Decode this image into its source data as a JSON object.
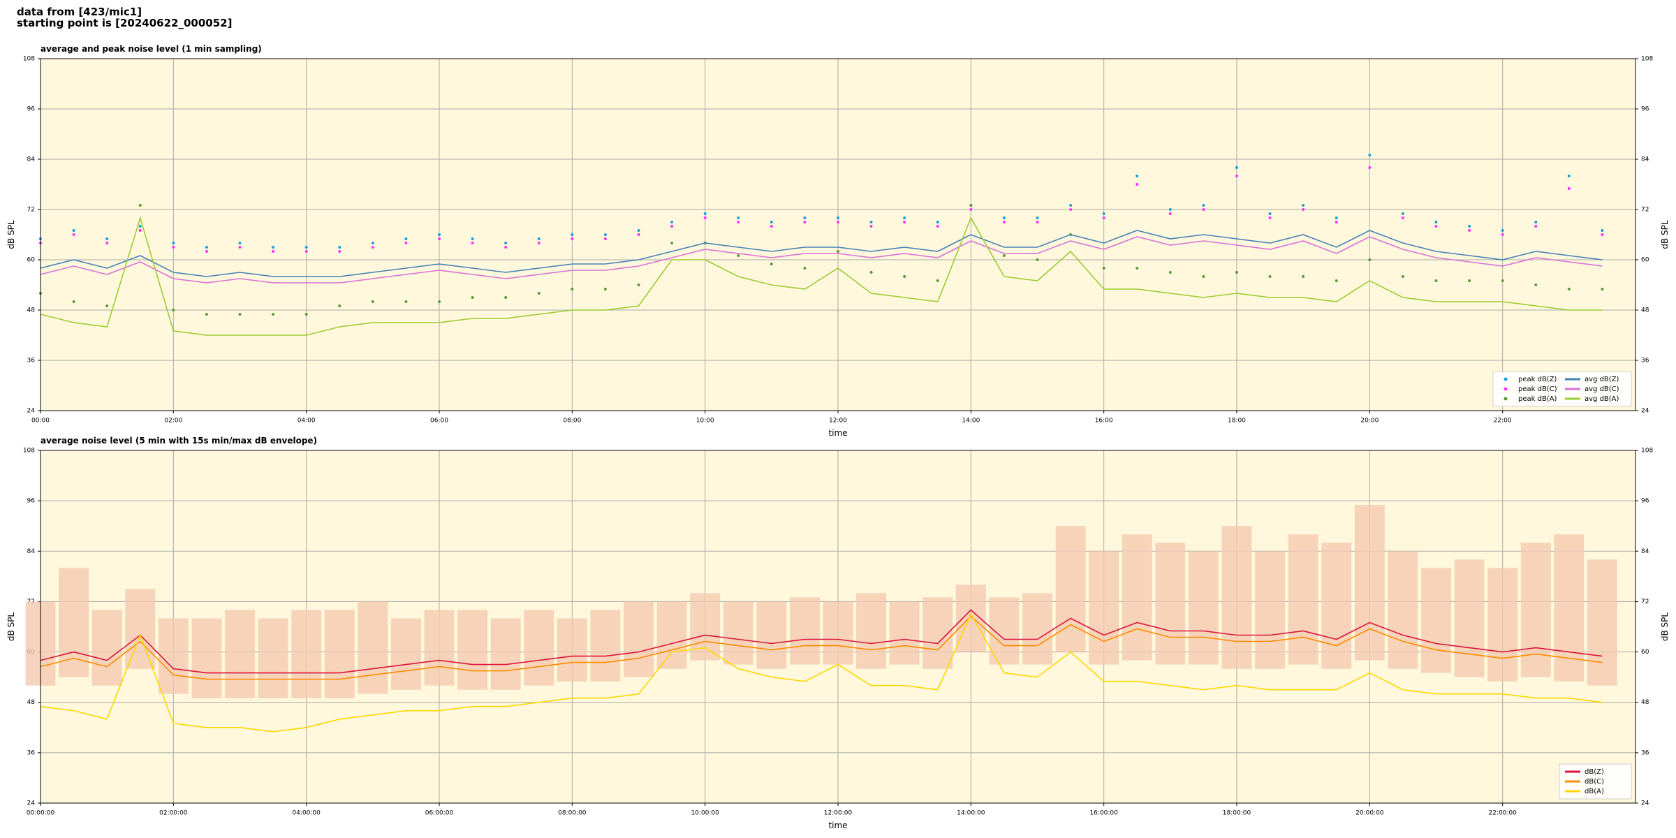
{
  "header": {
    "lines": [
      "data from [423/mic1]",
      "starting point is [20240622_000052]"
    ]
  },
  "chart_data": [
    {
      "type": "line",
      "title": "average and peak noise level (1 min sampling)",
      "xlabel": "time",
      "ylabel": "dB SPL",
      "background": "#fff8dc",
      "grid": true,
      "legend": "lower right",
      "xlim": [
        0,
        24
      ],
      "ylim": [
        24,
        108
      ],
      "yticks": [
        24,
        36,
        48,
        60,
        72,
        84,
        96,
        108
      ],
      "xticks": [
        {
          "value": 0,
          "label": "00:00"
        },
        {
          "value": 2,
          "label": "02:00"
        },
        {
          "value": 4,
          "label": "04:00"
        },
        {
          "value": 6,
          "label": "06:00"
        },
        {
          "value": 8,
          "label": "08:00"
        },
        {
          "value": 10,
          "label": "10:00"
        },
        {
          "value": 12,
          "label": "12:00"
        },
        {
          "value": 14,
          "label": "14:00"
        },
        {
          "value": 16,
          "label": "16:00"
        },
        {
          "value": 18,
          "label": "18:00"
        },
        {
          "value": 20,
          "label": "20:00"
        },
        {
          "value": 22,
          "label": "22:00"
        }
      ],
      "x": [
        0,
        0.5,
        1,
        1.5,
        2,
        2.5,
        3,
        3.5,
        4,
        4.5,
        5,
        5.5,
        6,
        6.5,
        7,
        7.5,
        8,
        8.5,
        9,
        9.5,
        10,
        10.5,
        11,
        11.5,
        12,
        12.5,
        13,
        13.5,
        14,
        14.5,
        15,
        15.5,
        16,
        16.5,
        17,
        17.5,
        18,
        18.5,
        19,
        19.5,
        20,
        20.5,
        21,
        21.5,
        22,
        22.5,
        23,
        23.5
      ],
      "series": [
        {
          "name": "peak dB(Z)",
          "mode": "markers",
          "color": "#1f9fd8",
          "values": [
            65,
            67,
            65,
            68,
            64,
            63,
            64,
            63,
            63,
            63,
            64,
            65,
            66,
            65,
            64,
            65,
            66,
            66,
            67,
            69,
            71,
            70,
            69,
            70,
            70,
            69,
            70,
            69,
            73,
            70,
            70,
            73,
            71,
            80,
            72,
            73,
            82,
            71,
            73,
            70,
            85,
            71,
            69,
            68,
            67,
            69,
            80,
            67
          ]
        },
        {
          "name": "peak dB(C)",
          "mode": "markers",
          "color": "#ff33ff",
          "values": [
            64,
            66,
            64,
            67,
            63,
            62,
            63,
            62,
            62,
            62,
            63,
            64,
            65,
            64,
            63,
            64,
            65,
            65,
            66,
            68,
            70,
            69,
            68,
            69,
            69,
            68,
            69,
            68,
            72,
            69,
            69,
            72,
            70,
            78,
            71,
            72,
            80,
            70,
            72,
            69,
            82,
            70,
            68,
            67,
            66,
            68,
            77,
            66
          ]
        },
        {
          "name": "peak dB(A)",
          "mode": "markers",
          "color": "#5a9a3a",
          "values": [
            52,
            50,
            49,
            73,
            48,
            47,
            47,
            47,
            47,
            49,
            50,
            50,
            50,
            51,
            51,
            52,
            53,
            53,
            54,
            64,
            64,
            61,
            59,
            58,
            62,
            57,
            56,
            55,
            73,
            61,
            60,
            66,
            58,
            58,
            57,
            56,
            57,
            56,
            56,
            55,
            60,
            56,
            55,
            55,
            55,
            54,
            53,
            53
          ]
        },
        {
          "name": "avg dB(Z)",
          "mode": "line",
          "color": "#4682b4",
          "values": [
            58,
            60,
            58,
            61,
            57,
            56,
            57,
            56,
            56,
            56,
            57,
            58,
            59,
            58,
            57,
            58,
            59,
            59,
            60,
            62,
            64,
            63,
            62,
            63,
            63,
            62,
            63,
            62,
            66,
            63,
            63,
            66,
            64,
            67,
            65,
            66,
            65,
            64,
            66,
            63,
            67,
            64,
            62,
            61,
            60,
            62,
            61,
            60
          ]
        },
        {
          "name": "avg dB(C)",
          "mode": "line",
          "color": "#da70d6",
          "values": [
            56.5,
            58.5,
            56.5,
            59.5,
            55.5,
            54.5,
            55.5,
            54.5,
            54.5,
            54.5,
            55.5,
            56.5,
            57.5,
            56.5,
            55.5,
            56.5,
            57.5,
            57.5,
            58.5,
            60.5,
            62.5,
            61.5,
            60.5,
            61.5,
            61.5,
            60.5,
            61.5,
            60.5,
            64.5,
            61.5,
            61.5,
            64.5,
            62.5,
            65.5,
            63.5,
            64.5,
            63.5,
            62.5,
            64.5,
            61.5,
            65.5,
            62.5,
            60.5,
            59.5,
            58.5,
            60.5,
            59.5,
            58.5
          ]
        },
        {
          "name": "avg dB(A)",
          "mode": "line",
          "color": "#9acd32",
          "values": [
            47,
            45,
            44,
            70,
            43,
            42,
            42,
            42,
            42,
            44,
            45,
            45,
            45,
            46,
            46,
            47,
            48,
            48,
            49,
            60,
            60,
            56,
            54,
            53,
            58,
            52,
            51,
            50,
            70,
            56,
            55,
            62,
            53,
            53,
            52,
            51,
            52,
            51,
            51,
            50,
            55,
            51,
            50,
            50,
            50,
            49,
            48,
            48
          ]
        }
      ]
    },
    {
      "type": "line",
      "title": "average noise level (5 min with 15s min/max dB envelope)",
      "xlabel": "time",
      "ylabel": "dB SPL",
      "background": "#fff8dc",
      "grid": true,
      "legend": "lower right",
      "xlim": [
        0,
        24
      ],
      "ylim": [
        24,
        108
      ],
      "yticks": [
        24,
        36,
        48,
        60,
        72,
        84,
        96,
        108
      ],
      "xticks": [
        {
          "value": 0,
          "label": "00:00:00"
        },
        {
          "value": 2,
          "label": "02:00:00"
        },
        {
          "value": 4,
          "label": "04:00:00"
        },
        {
          "value": 6,
          "label": "06:00:00"
        },
        {
          "value": 8,
          "label": "08:00:00"
        },
        {
          "value": 10,
          "label": "10:00:00"
        },
        {
          "value": 12,
          "label": "12:00:00"
        },
        {
          "value": 14,
          "label": "14:00:00"
        },
        {
          "value": 16,
          "label": "16:00:00"
        },
        {
          "value": 18,
          "label": "18:00:00"
        },
        {
          "value": 20,
          "label": "20:00:00"
        },
        {
          "value": 22,
          "label": "22:00:00"
        }
      ],
      "x": [
        0,
        0.5,
        1,
        1.5,
        2,
        2.5,
        3,
        3.5,
        4,
        4.5,
        5,
        5.5,
        6,
        6.5,
        7,
        7.5,
        8,
        8.5,
        9,
        9.5,
        10,
        10.5,
        11,
        11.5,
        12,
        12.5,
        13,
        13.5,
        14,
        14.5,
        15,
        15.5,
        16,
        16.5,
        17,
        17.5,
        18,
        18.5,
        19,
        19.5,
        20,
        20.5,
        21,
        21.5,
        22,
        22.5,
        23,
        23.5
      ],
      "envelope": {
        "color": "#f4c9b0",
        "lower": [
          52,
          54,
          52,
          56,
          50,
          49,
          49,
          49,
          49,
          49,
          50,
          51,
          52,
          51,
          51,
          52,
          53,
          53,
          54,
          56,
          58,
          57,
          56,
          57,
          57,
          56,
          57,
          56,
          60,
          57,
          57,
          60,
          57,
          58,
          57,
          57,
          56,
          56,
          57,
          56,
          58,
          56,
          55,
          54,
          53,
          54,
          53,
          52
        ],
        "upper": [
          72,
          80,
          70,
          75,
          68,
          68,
          70,
          68,
          70,
          70,
          72,
          68,
          70,
          70,
          68,
          70,
          68,
          70,
          72,
          72,
          74,
          72,
          72,
          73,
          72,
          74,
          72,
          73,
          76,
          73,
          74,
          90,
          84,
          88,
          86,
          84,
          90,
          84,
          88,
          86,
          95,
          84,
          80,
          82,
          80,
          86,
          88,
          82
        ]
      },
      "series": [
        {
          "name": "dB(Z)",
          "mode": "line",
          "color": "#dc143c",
          "values": [
            58,
            60,
            58,
            64,
            56,
            55,
            55,
            55,
            55,
            55,
            56,
            57,
            58,
            57,
            57,
            58,
            59,
            59,
            60,
            62,
            64,
            63,
            62,
            63,
            63,
            62,
            63,
            62,
            70,
            63,
            63,
            68,
            64,
            67,
            65,
            65,
            64,
            64,
            65,
            63,
            67,
            64,
            62,
            61,
            60,
            61,
            60,
            59
          ]
        },
        {
          "name": "dB(C)",
          "mode": "line",
          "color": "#ff8c00",
          "values": [
            56.5,
            58.5,
            56.5,
            62.5,
            54.5,
            53.5,
            53.5,
            53.5,
            53.5,
            53.5,
            54.5,
            55.5,
            56.5,
            55.5,
            55.5,
            56.5,
            57.5,
            57.5,
            58.5,
            60.5,
            62.5,
            61.5,
            60.5,
            61.5,
            61.5,
            60.5,
            61.5,
            60.5,
            68.5,
            61.5,
            61.5,
            66.5,
            62.5,
            65.5,
            63.5,
            63.5,
            62.5,
            62.5,
            63.5,
            61.5,
            65.5,
            62.5,
            60.5,
            59.5,
            58.5,
            59.5,
            58.5,
            57.5
          ]
        },
        {
          "name": "dB(A)",
          "mode": "line",
          "color": "#ffd700",
          "values": [
            47,
            46,
            44,
            64,
            43,
            42,
            42,
            41,
            42,
            44,
            45,
            46,
            46,
            47,
            47,
            48,
            49,
            49,
            50,
            60,
            61,
            56,
            54,
            53,
            57,
            52,
            52,
            51,
            69,
            55,
            54,
            60,
            53,
            53,
            52,
            51,
            52,
            51,
            51,
            51,
            55,
            51,
            50,
            50,
            50,
            49,
            49,
            48
          ]
        }
      ]
    }
  ]
}
